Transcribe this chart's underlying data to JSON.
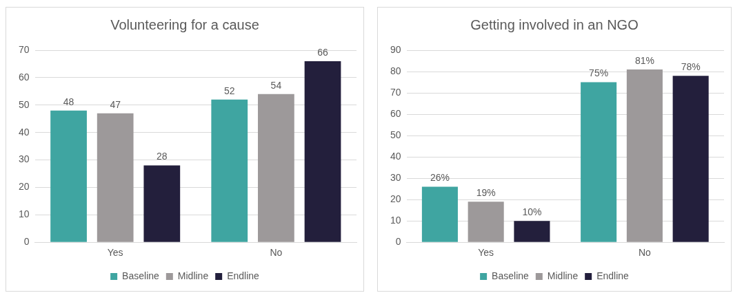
{
  "chart_data": [
    {
      "type": "bar",
      "title": "Volunteering for a cause",
      "categories": [
        "Yes",
        "No"
      ],
      "series": [
        {
          "name": "Baseline",
          "color": "#3fa5a1",
          "values": [
            48,
            52
          ]
        },
        {
          "name": "Midline",
          "color": "#9d999a",
          "values": [
            47,
            54
          ]
        },
        {
          "name": "Endline",
          "color": "#231f3c",
          "values": [
            28,
            66
          ]
        }
      ],
      "ylim": [
        0,
        70
      ],
      "yticks": [
        0,
        10,
        20,
        30,
        40,
        50,
        60,
        70
      ],
      "grid": "y",
      "legend": "bottom",
      "data_labels": true
    },
    {
      "type": "bar",
      "title": "Getting involved in an NGO",
      "categories": [
        "Yes",
        "No"
      ],
      "series": [
        {
          "name": "Baseline",
          "color": "#3fa5a1",
          "values": [
            26,
            75
          ],
          "value_labels": [
            "26%",
            "75%"
          ]
        },
        {
          "name": "Midline",
          "color": "#9d999a",
          "values": [
            19,
            81
          ],
          "value_labels": [
            "19%",
            "81%"
          ]
        },
        {
          "name": "Endline",
          "color": "#231f3c",
          "values": [
            10,
            78
          ],
          "value_labels": [
            "10%",
            "78%"
          ]
        }
      ],
      "ylim": [
        0,
        90
      ],
      "yticks": [
        0,
        10,
        20,
        30,
        40,
        50,
        60,
        70,
        80,
        90
      ],
      "grid": "y",
      "legend": "bottom"
    }
  ]
}
